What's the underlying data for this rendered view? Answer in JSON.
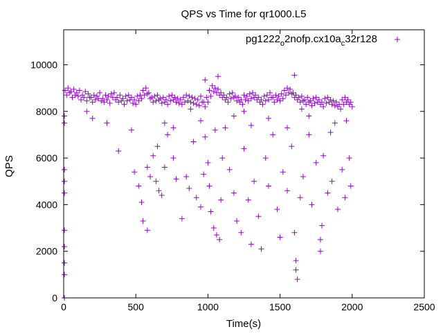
{
  "chart_data": {
    "type": "scatter",
    "title": "QPS vs Time for qr1000.L5",
    "xlabel": "Time(s)",
    "ylabel": "QPS",
    "xlim": [
      0,
      2500
    ],
    "ylim": [
      0,
      11500
    ],
    "xticks": [
      "0",
      "500",
      "1000",
      "1500",
      "2000",
      "2500"
    ],
    "yticks": [
      "0",
      "2000",
      "4000",
      "6000",
      "8000",
      "10000"
    ],
    "xtick_values": [
      0,
      500,
      1000,
      1500,
      2000,
      2500
    ],
    "ytick_values": [
      0,
      2000,
      4000,
      6000,
      8000,
      10000
    ],
    "grid": false,
    "legend_placement": "top-right",
    "series": [
      {
        "name": "pg1222_o2nofp.cx10a_c32r128",
        "legend_parts": [
          "pg1222",
          "o",
          "2nofp.cx10a",
          "c",
          "32r128"
        ],
        "color": "#9400d3",
        "marker": "+",
        "band_x_start": 10,
        "band_x_step": 20,
        "band_y": [
          8900,
          9000,
          8850,
          8950,
          8800,
          8900,
          8700,
          8850,
          8750,
          8600,
          8700,
          8650,
          8800,
          8550,
          8700,
          8650,
          8750,
          8800,
          8600,
          8700,
          8550,
          8650,
          8700,
          8600,
          8500,
          8650,
          8700,
          8900,
          9000,
          8800,
          8600,
          8650,
          8700,
          8550,
          8600,
          8500,
          8650,
          8700,
          8600,
          8550,
          8500,
          8600,
          8700,
          8650,
          8600,
          8550,
          8500,
          8650,
          8400,
          8600,
          8900,
          9100,
          9000,
          8950,
          8800,
          8700,
          8600,
          8750,
          8800,
          8650,
          8600,
          8500,
          8700,
          8650,
          8750,
          8800,
          8700,
          8600,
          8500,
          8650,
          8700,
          8800,
          8600,
          8700,
          8650,
          8750,
          8900,
          9000,
          8950,
          8800,
          8700,
          8600,
          8650,
          8500,
          8600,
          8450,
          8550,
          8600,
          8500,
          8400,
          8550,
          8600,
          8500,
          8450,
          8400,
          8300,
          8500,
          8600,
          8500,
          8400
        ],
        "band_y2": [
          8700,
          8800,
          8600,
          8700,
          8650,
          8500,
          8600,
          8450,
          8600,
          8400,
          8500,
          8550,
          8450,
          8400,
          8500,
          8350,
          8600,
          8500,
          8400,
          8450,
          8300,
          8450,
          8500,
          8350,
          8300,
          8450,
          8550,
          8700,
          8750,
          8550,
          8400,
          8450,
          8500,
          8350,
          8400,
          8300,
          8450,
          8500,
          8400,
          8350,
          8300,
          8400,
          8450,
          8400,
          8350,
          8300,
          8250,
          8400,
          8200,
          8400,
          8650,
          8850,
          8800,
          8700,
          8600,
          8500,
          8400,
          8550,
          8600,
          8450,
          8400,
          8300,
          8500,
          8450,
          8550,
          8600,
          8500,
          8400,
          8300,
          8450,
          8500,
          8600,
          8400,
          8500,
          8450,
          8550,
          8700,
          8800,
          8750,
          8600,
          8500,
          8400,
          8450,
          8300,
          8400,
          8250,
          8350,
          8400,
          8300,
          8200,
          8350,
          8400,
          8300,
          8250,
          8200,
          8100,
          8300,
          8400,
          8300,
          8200
        ],
        "points": [
          [
            5,
            0
          ],
          [
            5,
            1000
          ],
          [
            5,
            1500
          ],
          [
            5,
            2200
          ],
          [
            5,
            2900
          ],
          [
            5,
            4500
          ],
          [
            5,
            5000
          ],
          [
            5,
            5500
          ],
          [
            5,
            7500
          ],
          [
            5,
            7800
          ],
          [
            160,
            8000
          ],
          [
            200,
            7700
          ],
          [
            300,
            7500
          ],
          [
            380,
            6300
          ],
          [
            470,
            7200
          ],
          [
            490,
            5400
          ],
          [
            520,
            4800
          ],
          [
            540,
            4100
          ],
          [
            550,
            3300
          ],
          [
            580,
            2900
          ],
          [
            580,
            5600
          ],
          [
            600,
            5200
          ],
          [
            620,
            6100
          ],
          [
            640,
            5000
          ],
          [
            650,
            6500
          ],
          [
            660,
            4600
          ],
          [
            680,
            4400
          ],
          [
            700,
            5600
          ],
          [
            720,
            7000
          ],
          [
            760,
            6000
          ],
          [
            780,
            5100
          ],
          [
            820,
            3400
          ],
          [
            850,
            5200
          ],
          [
            870,
            4700
          ],
          [
            900,
            6700
          ],
          [
            920,
            4300
          ],
          [
            950,
            3900
          ],
          [
            970,
            5300
          ],
          [
            980,
            6900
          ],
          [
            1000,
            5800
          ],
          [
            1010,
            4800
          ],
          [
            1020,
            3700
          ],
          [
            1040,
            3000
          ],
          [
            1060,
            2700
          ],
          [
            1080,
            2500
          ],
          [
            1090,
            4200
          ],
          [
            1100,
            6000
          ],
          [
            1120,
            7300
          ],
          [
            1150,
            5500
          ],
          [
            1180,
            4500
          ],
          [
            1200,
            3300
          ],
          [
            1230,
            2800
          ],
          [
            1250,
            6400
          ],
          [
            1280,
            4200
          ],
          [
            1300,
            2300
          ],
          [
            1320,
            5000
          ],
          [
            1350,
            3500
          ],
          [
            1370,
            2100
          ],
          [
            1400,
            6000
          ],
          [
            1420,
            4800
          ],
          [
            1450,
            7000
          ],
          [
            1480,
            3800
          ],
          [
            1500,
            2600
          ],
          [
            1520,
            5400
          ],
          [
            1550,
            4600
          ],
          [
            1580,
            6500
          ],
          [
            1600,
            2800
          ],
          [
            1610,
            1600
          ],
          [
            1620,
            800
          ],
          [
            1610,
            1200
          ],
          [
            1640,
            4300
          ],
          [
            1660,
            5200
          ],
          [
            1700,
            7000
          ],
          [
            1720,
            4000
          ],
          [
            1750,
            5800
          ],
          [
            1780,
            2000
          ],
          [
            1780,
            2500
          ],
          [
            1790,
            3100
          ],
          [
            1800,
            6100
          ],
          [
            1830,
            4500
          ],
          [
            1860,
            5000
          ],
          [
            1880,
            7500
          ],
          [
            1900,
            3800
          ],
          [
            1930,
            5500
          ],
          [
            1950,
            4300
          ],
          [
            1980,
            6000
          ],
          [
            1990,
            4800
          ],
          [
            1070,
            9500
          ],
          [
            1600,
            9550
          ],
          [
            980,
            9350
          ],
          [
            950,
            7600
          ],
          [
            1050,
            7200
          ],
          [
            1180,
            7800
          ],
          [
            1300,
            7400
          ],
          [
            1420,
            7700
          ],
          [
            1550,
            7300
          ],
          [
            1700,
            7800
          ],
          [
            1850,
            7100
          ],
          [
            1960,
            7600
          ],
          [
            880,
            8100
          ],
          [
            1250,
            8000
          ],
          [
            1650,
            8100
          ],
          [
            700,
            7500
          ],
          [
            760,
            7300
          ]
        ]
      }
    ]
  }
}
